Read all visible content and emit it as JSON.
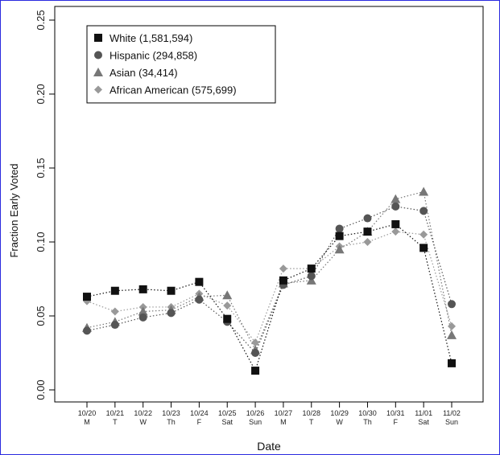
{
  "chart_data": {
    "type": "line",
    "title": "",
    "xlabel": "Date",
    "ylabel": "Fraction Early Voted",
    "ylim": [
      0,
      0.25
    ],
    "y_ticks": [
      "0.00",
      "0.05",
      "0.10",
      "0.15",
      "0.20",
      "0.25"
    ],
    "y_tick_values": [
      0,
      0.05,
      0.1,
      0.15,
      0.2,
      0.25
    ],
    "categories": [
      "10/20",
      "10/21",
      "10/22",
      "10/23",
      "10/24",
      "10/25",
      "10/26",
      "10/27",
      "10/28",
      "10/29",
      "10/30",
      "10/31",
      "11/01",
      "11/02"
    ],
    "day_labels": [
      "M",
      "T",
      "W",
      "Th",
      "F",
      "Sat",
      "Sun",
      "M",
      "T",
      "W",
      "Th",
      "F",
      "Sat",
      "Sun"
    ],
    "grid": false,
    "legend_position": "top-left",
    "line_style": "dotted",
    "series": [
      {
        "name": "White (1,581,594)",
        "marker": "square",
        "color": "#111111",
        "values": [
          0.063,
          0.067,
          0.068,
          0.067,
          0.073,
          0.048,
          0.013,
          0.074,
          0.082,
          0.104,
          0.107,
          0.112,
          0.096,
          0.018
        ]
      },
      {
        "name": "Hispanic (294,858)",
        "marker": "circle",
        "color": "#555555",
        "values": [
          0.04,
          0.044,
          0.049,
          0.052,
          0.061,
          0.046,
          0.025,
          0.071,
          0.077,
          0.109,
          0.116,
          0.124,
          0.121,
          0.058
        ]
      },
      {
        "name": "Asian (34,414)",
        "marker": "triangle",
        "color": "#777777",
        "values": [
          0.042,
          0.046,
          0.053,
          0.054,
          0.063,
          0.064,
          0.027,
          0.072,
          0.074,
          0.095,
          0.107,
          0.129,
          0.134,
          0.037
        ]
      },
      {
        "name": "African American (575,699)",
        "marker": "diamond",
        "color": "#999999",
        "values": [
          0.06,
          0.053,
          0.056,
          0.056,
          0.065,
          0.057,
          0.032,
          0.082,
          0.082,
          0.097,
          0.1,
          0.107,
          0.105,
          0.043
        ]
      }
    ]
  }
}
